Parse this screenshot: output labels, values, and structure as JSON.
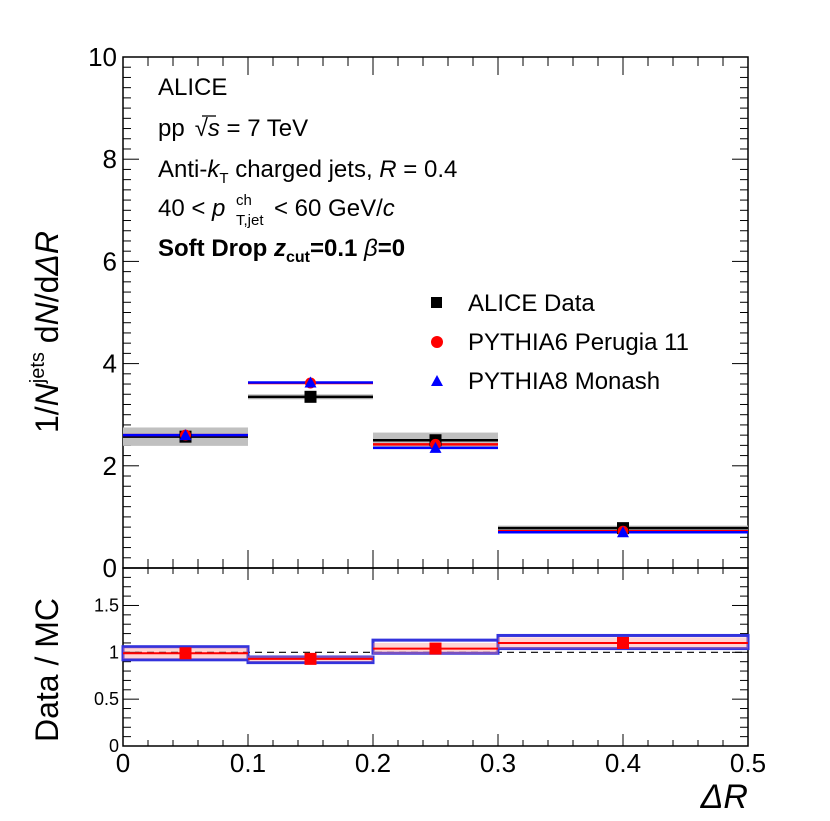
{
  "colors": {
    "data": "#000000",
    "pythia6": "#ff0000",
    "pythia8": "#0000ff",
    "band": "#c0c0c0",
    "ratio_band_p6": "#ff8888",
    "ratio_band_p8": "#3333dd"
  },
  "annotations": {
    "experiment": "ALICE",
    "energy_prefix": "pp",
    "energy_sqrt": "√",
    "energy_s": "s",
    "energy_value": " = 7 TeV",
    "algo_prefix": "Anti-",
    "algo_k": "k",
    "algo_T": "T",
    "algo_mid": " charged jets, ",
    "algo_R": "R",
    "algo_value": " = 0.4",
    "pt_low": "40 < ",
    "pt_p": "p",
    "pt_sup": "ch",
    "pt_sub": "T,jet",
    "pt_high": " < 60 GeV/",
    "pt_c": "c",
    "sd_prefix": "Soft Drop ",
    "sd_z": "z",
    "sd_cut": "cut",
    "sd_zvalue": "=0.1 ",
    "sd_beta": "β",
    "sd_bvalue": "=0"
  },
  "labels": {
    "upper_ylabel_a": "1/",
    "upper_ylabel_N": "N",
    "upper_ylabel_jets": "jets",
    "upper_ylabel_b": " d",
    "upper_ylabel_N2": "N",
    "upper_ylabel_c": "/d",
    "upper_ylabel_dR": "ΔR",
    "lower_ylabel": "Data / MC",
    "xlabel": "ΔR"
  },
  "chart_data": [
    {
      "type": "line",
      "panel": "upper",
      "title": "",
      "xlabel": "ΔR",
      "ylabel": "1/N^jets dN/dΔR",
      "xlim": [
        0,
        0.5
      ],
      "ylim": [
        0,
        10
      ],
      "x_ticks": [
        "0",
        "0.1",
        "0.2",
        "0.3",
        "0.4",
        "0.5"
      ],
      "y_ticks": [
        "0",
        "2",
        "4",
        "6",
        "8",
        "10"
      ],
      "bins": [
        [
          0,
          0.1
        ],
        [
          0.1,
          0.2
        ],
        [
          0.2,
          0.3
        ],
        [
          0.3,
          0.5
        ]
      ],
      "x_centers": [
        0.05,
        0.15,
        0.25,
        0.4
      ],
      "legend_position": "right",
      "series": [
        {
          "name": "ALICE Data",
          "marker": "square",
          "values": [
            2.57,
            3.35,
            2.5,
            0.78
          ],
          "errors": [
            0.1,
            0.1,
            0.06,
            0.03
          ],
          "syst": [
            0.18,
            0.05,
            0.15,
            0.05
          ]
        },
        {
          "name": "PYTHIA6 Perugia 11",
          "marker": "circle",
          "values": [
            2.6,
            3.62,
            2.42,
            0.72
          ]
        },
        {
          "name": "PYTHIA8 Monash",
          "marker": "triangle",
          "values": [
            2.6,
            3.63,
            2.35,
            0.7
          ]
        }
      ]
    },
    {
      "type": "line",
      "panel": "lower",
      "ylabel": "Data / MC",
      "xlim": [
        0,
        0.5
      ],
      "ylim": [
        0,
        1.9
      ],
      "y_ticks": [
        "0",
        "0.5",
        "1",
        "1.5"
      ],
      "reference_line": 1,
      "bins": [
        [
          0,
          0.1
        ],
        [
          0.1,
          0.2
        ],
        [
          0.2,
          0.3
        ],
        [
          0.3,
          0.5
        ]
      ],
      "x_centers": [
        0.05,
        0.15,
        0.25,
        0.4
      ],
      "series": [
        {
          "name": "Data / PYTHIA6 Perugia 11",
          "values": [
            0.99,
            0.93,
            1.04,
            1.1
          ],
          "errors": [
            0.03,
            0.02,
            0.03,
            0.06
          ],
          "band": [
            0.06,
            0.03,
            0.06,
            0.06
          ]
        },
        {
          "name": "Data / PYTHIA8 Monash",
          "values": [
            0.99,
            0.92,
            1.06,
            1.11
          ],
          "band": [
            0.07,
            0.03,
            0.07,
            0.07
          ]
        }
      ]
    }
  ]
}
